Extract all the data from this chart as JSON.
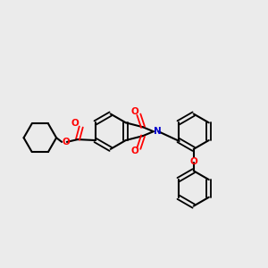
{
  "background_color": "#ebebeb",
  "bond_color": "#000000",
  "N_color": "#0000cc",
  "O_color": "#ff0000",
  "figsize": [
    3.0,
    3.0
  ],
  "dpi": 100,
  "xlim": [
    -1.5,
    1.7
  ],
  "ylim": [
    -1.15,
    1.15
  ]
}
